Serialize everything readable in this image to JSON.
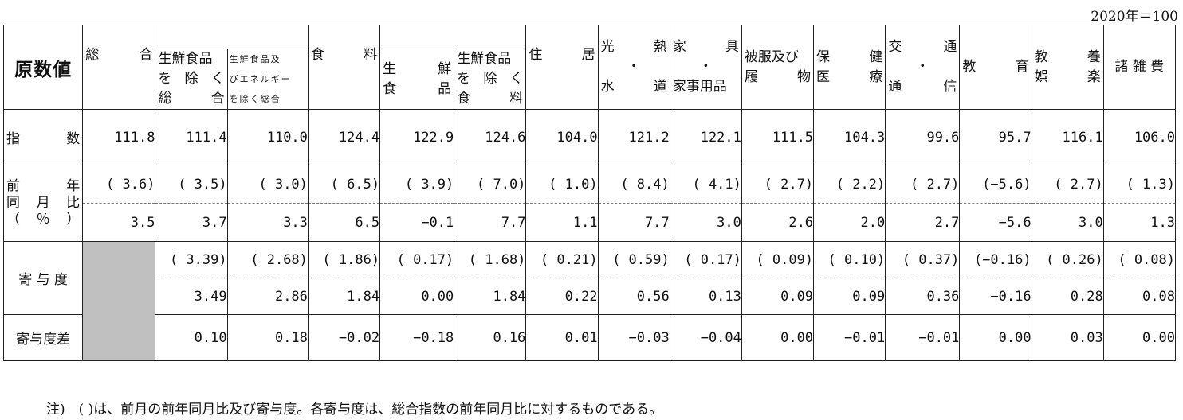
{
  "base_note": "2020年＝100",
  "header": {
    "corner": "原数値",
    "general": [
      "総",
      "合"
    ],
    "ex_fresh": [
      [
        "生鮮食品"
      ],
      [
        "を",
        "除",
        "く"
      ],
      [
        "総",
        "合"
      ]
    ],
    "ex_fresh_energy": [
      "生鮮食品及",
      "びエネルギー",
      "を除く総合"
    ],
    "food": [
      "食",
      "料"
    ],
    "fresh_food": [
      [
        "生",
        "鮮"
      ],
      [
        "食",
        "品"
      ]
    ],
    "food_ex_fresh": [
      [
        "生鮮食品"
      ],
      [
        "を",
        "除",
        "く"
      ],
      [
        "食",
        "料"
      ]
    ],
    "housing": [
      "住",
      "居"
    ],
    "utilities": [
      [
        "光",
        "熱"
      ],
      [
        "・"
      ],
      [
        "水",
        "道"
      ]
    ],
    "furniture": [
      [
        "家",
        "具"
      ],
      [
        "・"
      ],
      [
        "家事用品"
      ]
    ],
    "clothing": [
      [
        "被服及び"
      ],
      [
        "履",
        "物"
      ]
    ],
    "medical": [
      [
        "保",
        "健"
      ],
      [
        "医",
        "療"
      ]
    ],
    "transport": [
      [
        "交",
        "通"
      ],
      [
        "・"
      ],
      [
        "通",
        "信"
      ]
    ],
    "education": [
      "教",
      "育"
    ],
    "culture": [
      [
        "教",
        "養"
      ],
      [
        "娯",
        "楽"
      ]
    ],
    "misc": "諸 雑 費"
  },
  "rows": {
    "index_label": [
      "指",
      "数"
    ],
    "yoy_label": [
      [
        "前",
        "年"
      ],
      [
        "同",
        "月",
        "比"
      ],
      [
        "（",
        "％",
        "）"
      ]
    ],
    "contrib_label": "寄 与 度",
    "contrib_diff_label": "寄与度差"
  },
  "index": [
    "111.8",
    "111.4",
    "110.0",
    "124.4",
    "122.9",
    "124.6",
    "104.0",
    "121.2",
    "122.1",
    "111.5",
    "104.3",
    "99.6",
    "95.7",
    "116.1",
    "106.0"
  ],
  "yoy_prev": [
    "( 3.6)",
    "( 3.5)",
    "( 3.0)",
    "( 6.5)",
    "( 3.9)",
    "( 7.0)",
    "( 1.0)",
    "( 8.4)",
    "( 4.1)",
    "( 2.7)",
    "( 2.2)",
    "( 2.7)",
    "(−5.6)",
    "( 2.7)",
    "( 1.3)"
  ],
  "yoy": [
    "3.5",
    "3.7",
    "3.3",
    "6.5",
    "−0.1",
    "7.7",
    "1.1",
    "7.7",
    "3.0",
    "2.6",
    "2.0",
    "2.7",
    "−5.6",
    "3.0",
    "1.3"
  ],
  "contrib_prev": [
    "( 3.39)",
    "( 2.68)",
    "( 1.86)",
    "( 0.17)",
    "( 1.68)",
    "( 0.21)",
    "( 0.59)",
    "( 0.17)",
    "( 0.09)",
    "( 0.10)",
    "( 0.37)",
    "(−0.16)",
    "( 0.26)",
    "( 0.08)"
  ],
  "contrib": [
    "3.49",
    "2.86",
    "1.84",
    "0.00",
    "1.84",
    "0.22",
    "0.56",
    "0.13",
    "0.09",
    "0.09",
    "0.36",
    "−0.16",
    "0.28",
    "0.08"
  ],
  "contrib_diff": [
    "0.10",
    "0.18",
    "−0.02",
    "−0.18",
    "0.16",
    "0.01",
    "−0.03",
    "−0.04",
    "0.00",
    "−0.01",
    "−0.01",
    "0.00",
    "0.03",
    "0.00"
  ],
  "footnote": "注)　( )は、前月の前年同月比及び寄与度。各寄与度は、総合指数の前年同月比に対するものである。"
}
